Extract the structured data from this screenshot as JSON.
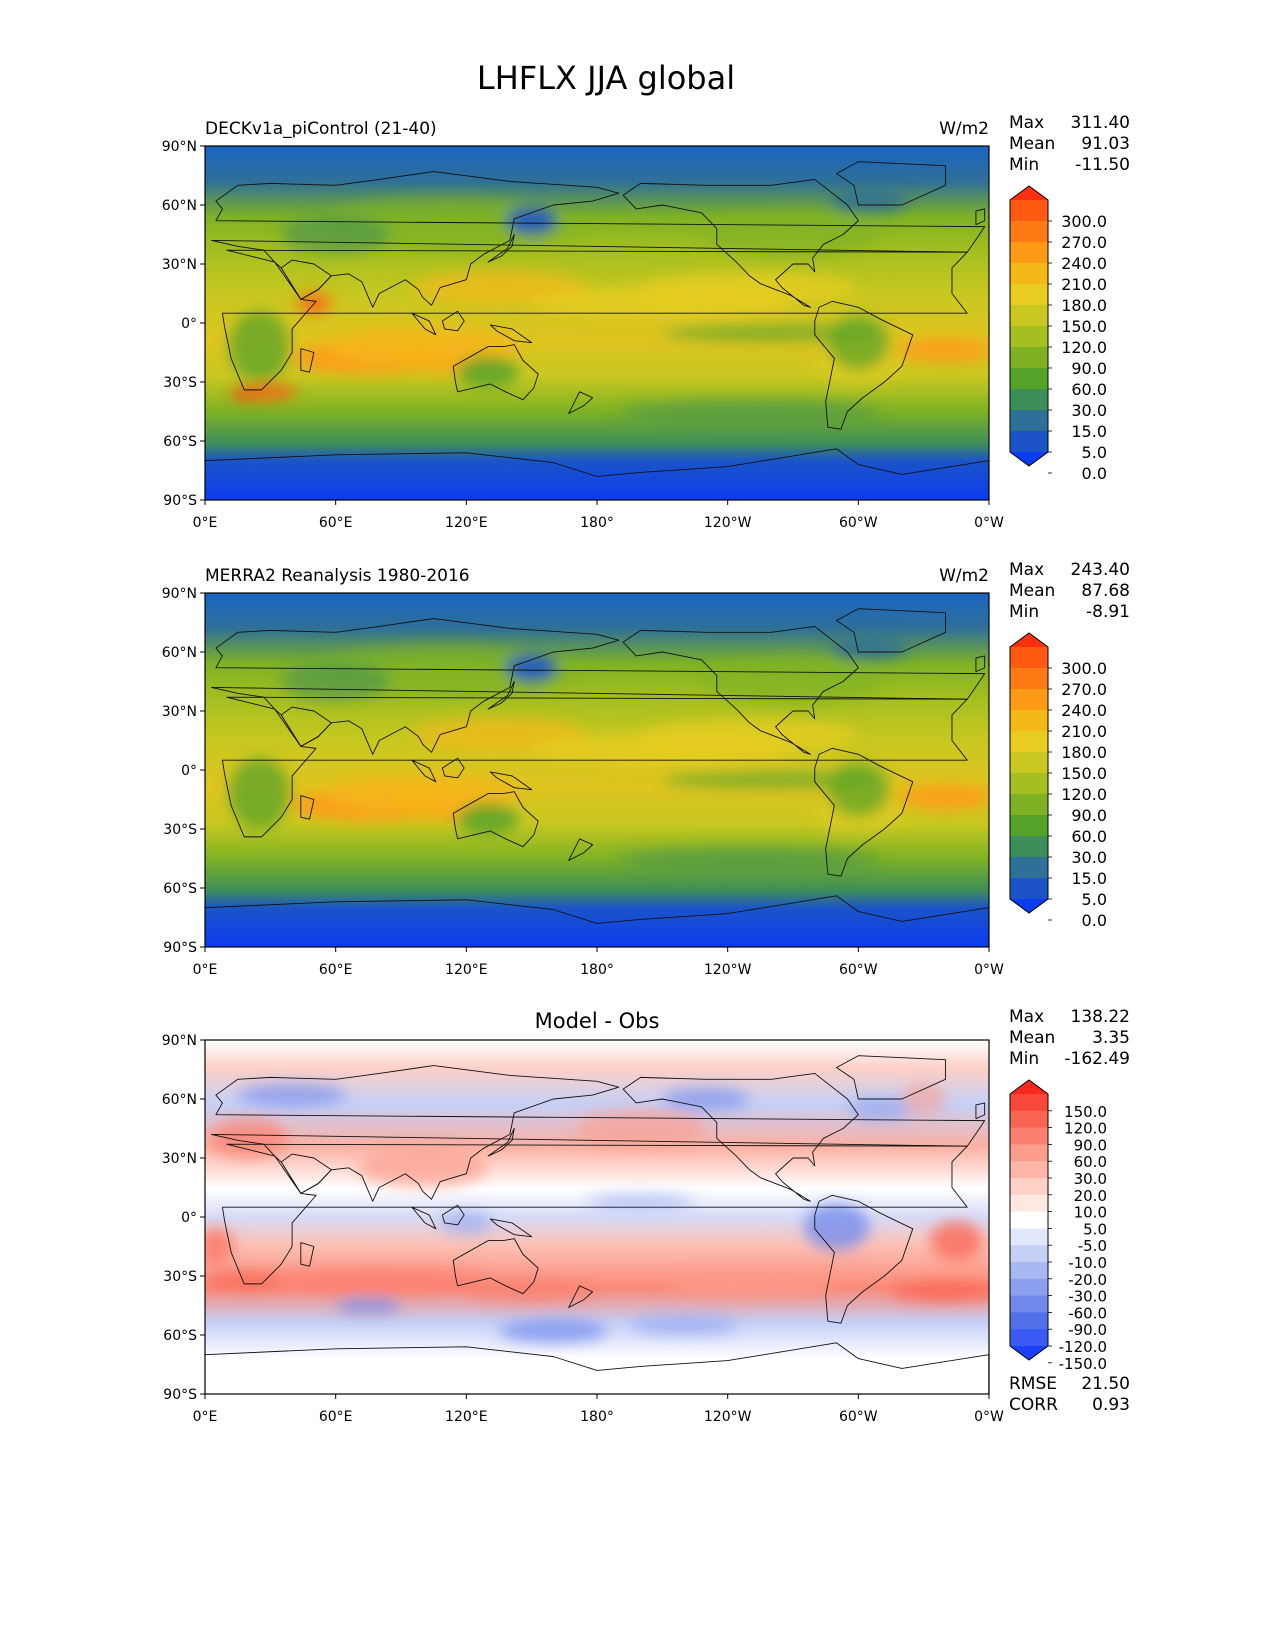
{
  "figure": {
    "title": "LHFLX JJA global"
  },
  "axes": {
    "lat_ticks": [
      "90°N",
      "60°N",
      "30°N",
      "0°",
      "30°S",
      "60°S",
      "90°S"
    ],
    "lon_ticks": [
      "0°E",
      "60°E",
      "120°E",
      "180°",
      "120°W",
      "60°W",
      "0°W"
    ]
  },
  "panels": [
    {
      "id": "model",
      "left_title": "DECKv1a_piControl (21-40)",
      "center_title": "",
      "units": "W/m2",
      "stats": [
        {
          "label": "Max",
          "value": "311.40"
        },
        {
          "label": "Mean",
          "value": "91.03"
        },
        {
          "label": "Min",
          "value": "-11.50"
        }
      ],
      "colorbar": {
        "labels": [
          "300.0",
          "270.0",
          "240.0",
          "210.0",
          "180.0",
          "150.0",
          "120.0",
          "90.0",
          "60.0",
          "30.0",
          "15.0",
          "5.0",
          "0.0"
        ],
        "colors": [
          "#ff3010",
          "#ff5a12",
          "#ff7a14",
          "#ff9a16",
          "#f5b81a",
          "#e8cc22",
          "#c8c820",
          "#a5bf20",
          "#7eb224",
          "#55a228",
          "#3e8e5a",
          "#2f7098",
          "#1c54c8",
          "#0a3cf0"
        ]
      }
    },
    {
      "id": "obs",
      "left_title": "MERRA2 Reanalysis 1980-2016",
      "center_title": "",
      "units": "W/m2",
      "stats": [
        {
          "label": "Max",
          "value": "243.40"
        },
        {
          "label": "Mean",
          "value": "87.68"
        },
        {
          "label": "Min",
          "value": "-8.91"
        }
      ],
      "colorbar": {
        "labels": [
          "300.0",
          "270.0",
          "240.0",
          "210.0",
          "180.0",
          "150.0",
          "120.0",
          "90.0",
          "60.0",
          "30.0",
          "15.0",
          "5.0",
          "0.0"
        ],
        "colors": [
          "#ff3010",
          "#ff5a12",
          "#ff7a14",
          "#ff9a16",
          "#f5b81a",
          "#e8cc22",
          "#c8c820",
          "#a5bf20",
          "#7eb224",
          "#55a228",
          "#3e8e5a",
          "#2f7098",
          "#1c54c8",
          "#0a3cf0"
        ]
      }
    },
    {
      "id": "diff",
      "left_title": "",
      "center_title": "Model - Obs",
      "units": "",
      "stats": [
        {
          "label": "Max",
          "value": "138.22"
        },
        {
          "label": "Mean",
          "value": "3.35"
        },
        {
          "label": "Min",
          "value": "-162.49"
        }
      ],
      "metrics": [
        {
          "label": "RMSE",
          "value": "21.50"
        },
        {
          "label": "CORR",
          "value": "0.93"
        }
      ],
      "colorbar": {
        "labels": [
          "150.0",
          "120.0",
          "90.0",
          "60.0",
          "30.0",
          "20.0",
          "10.0",
          "5.0",
          "-5.0",
          "-10.0",
          "-20.0",
          "-30.0",
          "-60.0",
          "-90.0",
          "-120.0",
          "-150.0"
        ],
        "colors": [
          "#f8291c",
          "#f9483a",
          "#fa6452",
          "#fb8070",
          "#fc9c8c",
          "#fdb6a8",
          "#fed0c6",
          "#ffe8e2",
          "#ffffff",
          "#e2e8fb",
          "#c6d0f7",
          "#a8b8f3",
          "#8ca0ef",
          "#7088eb",
          "#5270e7",
          "#3a5af3",
          "#1c40f8"
        ]
      }
    }
  ]
}
